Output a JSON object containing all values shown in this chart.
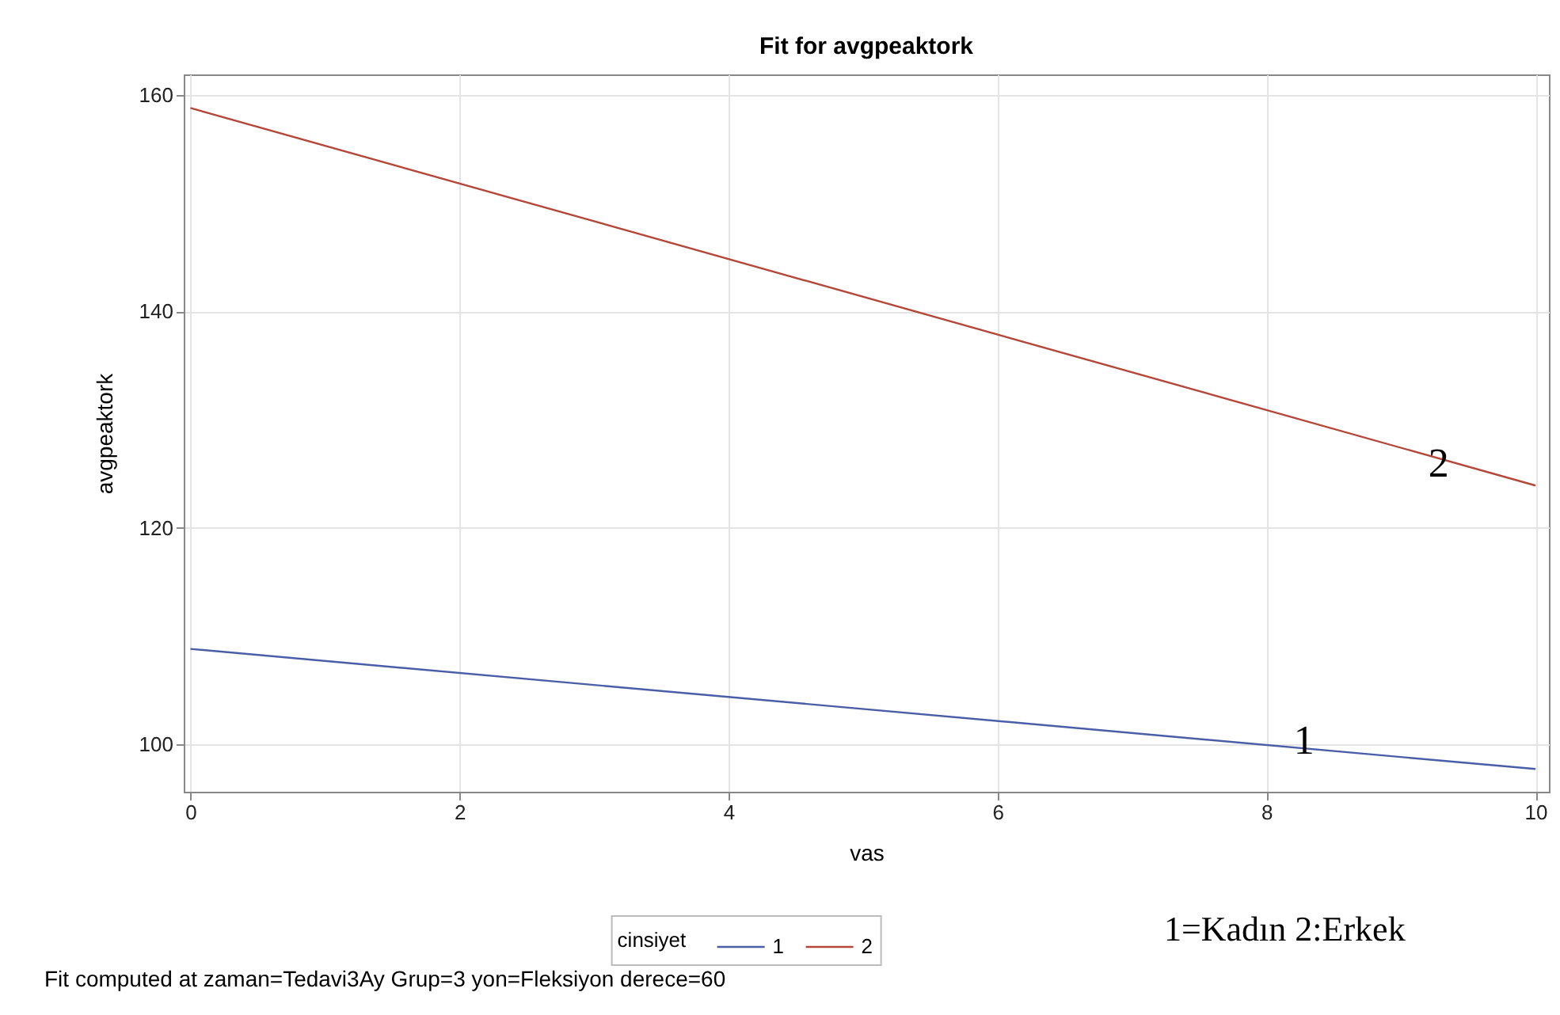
{
  "chart_data": {
    "type": "line",
    "title": "Fit for avgpeaktork",
    "xlabel": "vas",
    "ylabel": "avgpeaktork",
    "legend_title": "cinsiyet",
    "x": [
      0,
      10
    ],
    "series": [
      {
        "name": "1",
        "color": "#4a5ea8",
        "values": [
          108.8,
          97.7
        ]
      },
      {
        "name": "2",
        "color": "#b5473a",
        "values": [
          158.8,
          123.9
        ]
      }
    ],
    "xlim": [
      -0.05,
      10.1
    ],
    "xticks": [
      0,
      2,
      4,
      6,
      8,
      10
    ],
    "ylim": [
      95.6,
      161.9
    ],
    "yticks": [
      100,
      120,
      140,
      160
    ],
    "grid": true,
    "legend": "bottom",
    "marker": "none",
    "line_style": "solid",
    "annotations": [
      {
        "text": "2",
        "x": 9.28,
        "y": 125.9
      },
      {
        "text": "1",
        "x": 8.28,
        "y": 100.3
      },
      "1=Kadın 2:Erkek",
      "Fit computed at zaman=Tedavi3Ay Grup=3 yon=Fleksiyon derece=60"
    ]
  }
}
